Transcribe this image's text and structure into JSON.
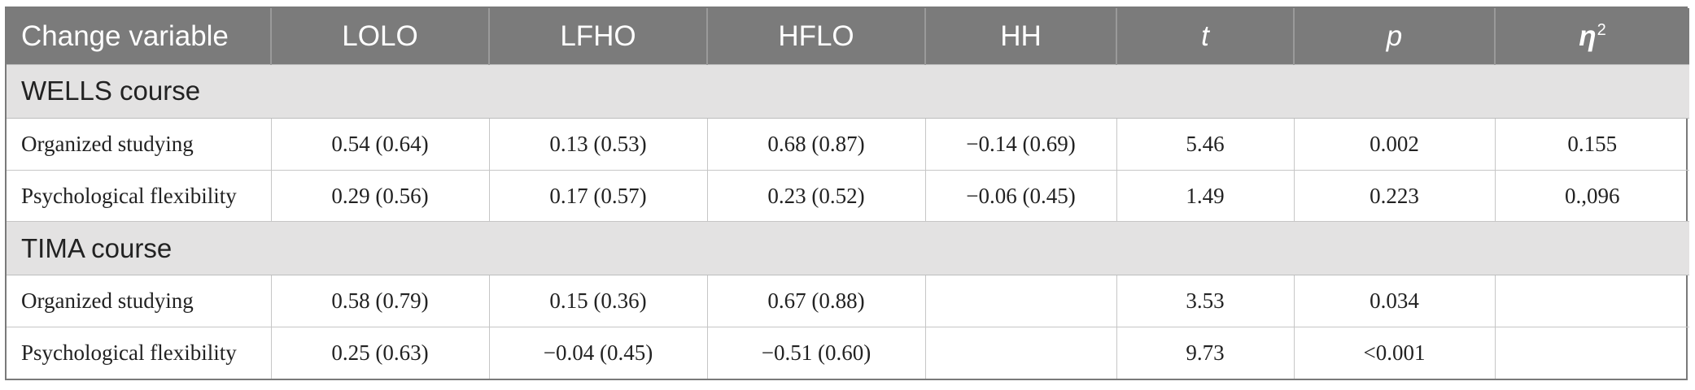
{
  "header": [
    "Change variable",
    "LOLO",
    "LFHO",
    "HFLO",
    "HH",
    "t",
    "p",
    "η",
    "2"
  ],
  "sections": [
    {
      "title": "WELLS course",
      "rows": [
        [
          "Organized studying",
          "0.54 (0.64)",
          "0.13 (0.53)",
          "0.68 (0.87)",
          "−0.14 (0.69)",
          "5.46",
          "0.002",
          "0.155"
        ],
        [
          "Psychological flexibility",
          "0.29 (0.56)",
          "0.17 (0.57)",
          "0.23 (0.52)",
          "−0.06 (0.45)",
          "1.49",
          "0.223",
          "0.,096"
        ]
      ]
    },
    {
      "title": "TIMA course",
      "rows": [
        [
          "Organized studying",
          "0.58 (0.79)",
          "0.15 (0.36)",
          "0.67 (0.88)",
          "",
          "3.53",
          "0.034",
          ""
        ],
        [
          "Psychological flexibility",
          "0.25 (0.63)",
          "−0.04 (0.45)",
          "−0.51 (0.60)",
          "",
          "9.73",
          "<0.001",
          ""
        ]
      ]
    }
  ]
}
